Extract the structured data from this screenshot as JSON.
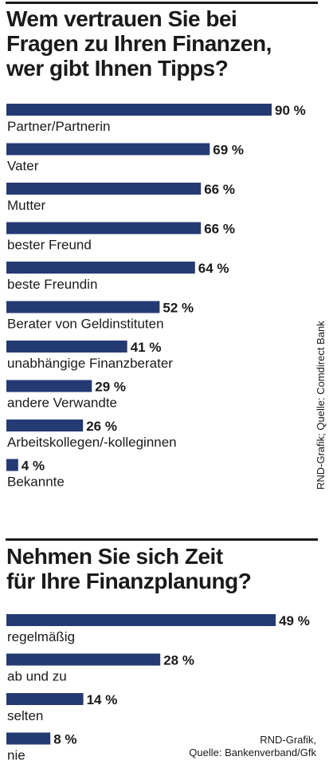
{
  "chart_data": [
    {
      "type": "bar",
      "orientation": "horizontal",
      "title": "Wem vertrauen Sie bei Fragen zu Ihren Finanzen, wer gibt Ihnen Tipps?",
      "title_lines": [
        "Wem vertrauen Sie bei",
        "Fragen zu Ihren Finanzen,",
        "wer gibt Ihnen Tipps?"
      ],
      "categories": [
        "Partner/Partnerin",
        "Vater",
        "Mutter",
        "bester Freund",
        "beste Freundin",
        "Berater von Geldinstituten",
        "unabhängige Finanzberater",
        "andere Verwandte",
        "Arbeitskollegen/-kolleginnen",
        "Bekannte"
      ],
      "values": [
        90,
        69,
        66,
        66,
        64,
        52,
        41,
        29,
        26,
        4
      ],
      "value_labels": [
        "90 %",
        "69 %",
        "66 %",
        "66 %",
        "64 %",
        "52 %",
        "41 %",
        "29 %",
        "26 %",
        "4 %"
      ],
      "unit": "%",
      "bar_color": "#243a73",
      "source": "RND-Grafik; Quelle: Comdirect Bank"
    },
    {
      "type": "bar",
      "orientation": "horizontal",
      "title": "Nehmen Sie sich Zeit für Ihre Finanzplanung?",
      "title_lines": [
        "Nehmen Sie sich Zeit",
        "für Ihre Finanzplanung?"
      ],
      "categories": [
        "regelmäßig",
        "ab und zu",
        "selten",
        "nie"
      ],
      "values": [
        49,
        28,
        14,
        8
      ],
      "value_labels": [
        "49 %",
        "28 %",
        "14 %",
        "8 %"
      ],
      "unit": "%",
      "bar_color": "#243a73",
      "source_lines": [
        "RND-Grafik,",
        "Quelle: Bankenverband/Gfk"
      ]
    }
  ]
}
